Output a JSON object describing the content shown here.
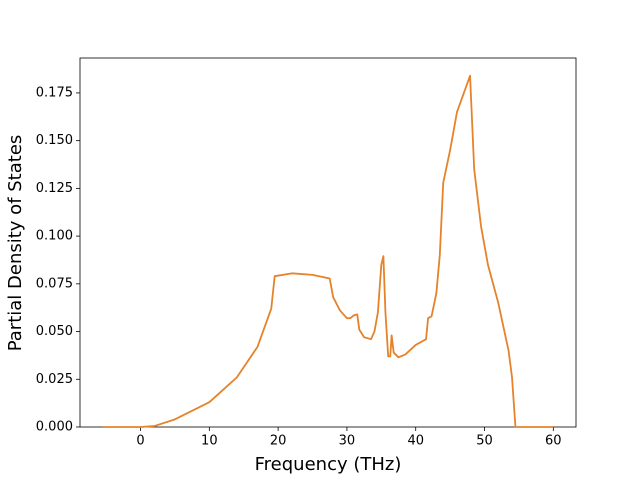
{
  "chart_data": {
    "type": "line",
    "xlabel": "Frequency (THz)",
    "ylabel": "Partial Density of States",
    "x": [
      -5.5,
      0,
      2,
      5,
      10,
      14,
      17,
      19,
      19.5,
      22,
      25,
      27.5,
      28,
      29,
      30,
      30.5,
      31,
      31.5,
      31.8,
      32.5,
      33.5,
      34,
      34.5,
      35,
      35.3,
      35.6,
      36,
      36.3,
      36.5,
      36.8,
      37.5,
      38.5,
      40,
      41,
      41.5,
      41.8,
      42.3,
      43,
      43.5,
      44,
      45,
      46,
      47,
      47.9,
      48.5,
      49.5,
      50.5,
      52,
      53.5,
      54,
      54.5,
      60
    ],
    "values": [
      0,
      0,
      0.0005,
      0.004,
      0.013,
      0.026,
      0.042,
      0.062,
      0.079,
      0.0805,
      0.0797,
      0.0778,
      0.068,
      0.061,
      0.057,
      0.057,
      0.0585,
      0.059,
      0.051,
      0.047,
      0.046,
      0.05,
      0.06,
      0.085,
      0.0895,
      0.06,
      0.037,
      0.037,
      0.048,
      0.039,
      0.0365,
      0.038,
      0.043,
      0.045,
      0.046,
      0.057,
      0.058,
      0.07,
      0.09,
      0.128,
      0.145,
      0.165,
      0.175,
      0.184,
      0.135,
      0.105,
      0.085,
      0.065,
      0.04,
      0.026,
      0,
      0
    ],
    "color": "#e5822a",
    "xlim": [
      -8.8,
      63.3
    ],
    "ylim": [
      0,
      0.1933
    ],
    "xticks": [
      0,
      10,
      20,
      30,
      40,
      50,
      60
    ],
    "yticks": [
      {
        "value": 0,
        "label": "0.000"
      },
      {
        "value": 0.025,
        "label": "0.025"
      },
      {
        "value": 0.05,
        "label": "0.050"
      },
      {
        "value": 0.075,
        "label": "0.075"
      },
      {
        "value": 0.1,
        "label": "0.100"
      },
      {
        "value": 0.125,
        "label": "0.125"
      },
      {
        "value": 0.15,
        "label": "0.150"
      },
      {
        "value": 0.175,
        "label": "0.175"
      }
    ]
  }
}
